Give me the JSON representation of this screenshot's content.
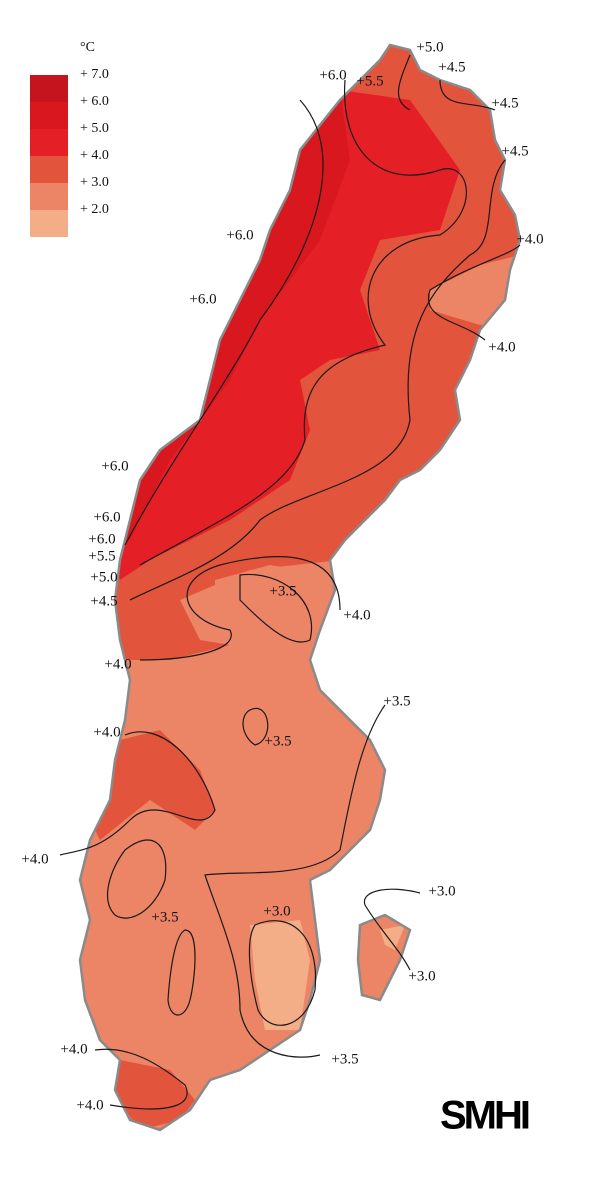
{
  "legend": {
    "title": "°C",
    "items": [
      {
        "label": "+ 7.0",
        "color": "#c5141d"
      },
      {
        "label": "+ 6.0",
        "color": "#d8171f"
      },
      {
        "label": "+ 5.0",
        "color": "#e51f26"
      },
      {
        "label": "+ 4.0",
        "color": "#e3543c"
      },
      {
        "label": "+ 3.0",
        "color": "#ec8466"
      },
      {
        "label": "+ 2.0",
        "color": "#f3ad87"
      }
    ]
  },
  "contour_labels": [
    "+5.0",
    "+4.5",
    "+6.0",
    "+5.5",
    "+4.5",
    "+4.5",
    "+6.0",
    "+4.0",
    "+6.0",
    "+4.0",
    "+6.0",
    "+6.0",
    "+6.0",
    "+5.5",
    "+5.0",
    "+4.5",
    "+3.5",
    "+4.0",
    "+4.0",
    "+3.5",
    "+4.0",
    "+3.5",
    "+4.0",
    "+3.0",
    "+3.5",
    "+3.0",
    "+3.0",
    "+4.0",
    "+3.5",
    "+4.0"
  ],
  "logo": "SMHI"
}
